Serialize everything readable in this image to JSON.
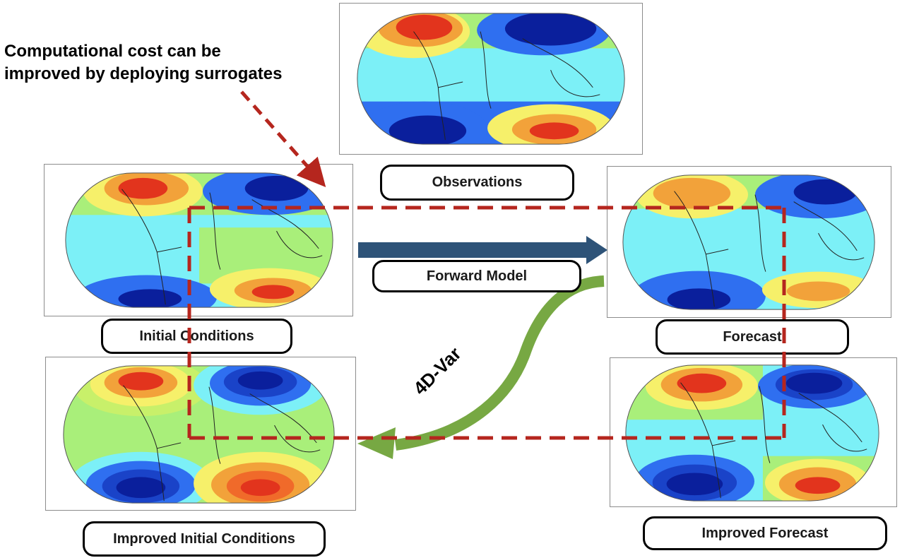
{
  "annotation": {
    "line1": "Computational cost can be",
    "line2": "improved by deploying surrogates"
  },
  "labels": {
    "observations": "Observations",
    "forward_model": "Forward Model",
    "initial_conditions": "Initial Conditions",
    "forecast": "Forecast",
    "improved_initial_conditions": "Improved Initial Conditions",
    "improved_forecast": "Improved Forecast",
    "four_d_var": "4D-Var"
  },
  "colors": {
    "dashed_box": "#b5261e",
    "forward_arrow": "#2e5378",
    "fourdvar_arrow": "#77a843",
    "map_deep_blue": "#0a1f9c",
    "map_blue": "#2f6ff0",
    "map_cyan": "#7cf0f7",
    "map_green": "#a9ef7a",
    "map_yellow": "#f6f06a",
    "map_orange": "#f2a23a",
    "map_red": "#e2341d"
  }
}
